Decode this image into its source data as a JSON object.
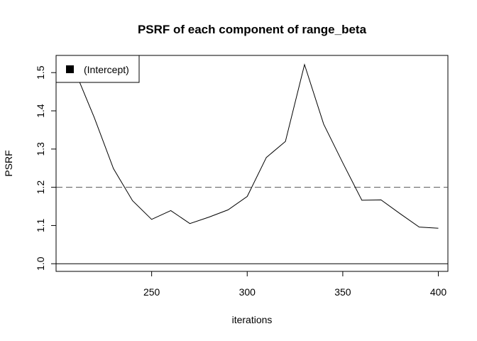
{
  "chart_data": {
    "type": "line",
    "title": "PSRF of each component of range_beta",
    "xlabel": "iterations",
    "ylabel": "PSRF",
    "xlim": [
      200,
      405
    ],
    "ylim": [
      0.98,
      1.545
    ],
    "xticks": [
      250,
      300,
      350,
      400
    ],
    "yticks": [
      1.0,
      1.1,
      1.2,
      1.3,
      1.4,
      1.5
    ],
    "ytick_labels": [
      "1.0",
      "1.1",
      "1.2",
      "1.3",
      "1.4",
      "1.5"
    ],
    "grid": false,
    "legend": {
      "position": "top-left",
      "entries": [
        "(Intercept)"
      ]
    },
    "series": [
      {
        "name": "(Intercept)",
        "color": "#000000",
        "x": [
          210,
          220,
          230,
          240,
          250,
          260,
          270,
          280,
          290,
          300,
          310,
          320,
          330,
          340,
          350,
          360,
          370,
          380,
          390,
          400
        ],
        "values": [
          1.503,
          1.382,
          1.249,
          1.165,
          1.116,
          1.139,
          1.105,
          1.122,
          1.141,
          1.176,
          1.278,
          1.32,
          1.521,
          1.365,
          1.264,
          1.166,
          1.167,
          1.131,
          1.096,
          1.093
        ]
      }
    ],
    "reference_lines": [
      {
        "y": 1.0,
        "style": "solid",
        "color": "#000000"
      },
      {
        "y": 1.2,
        "style": "dashed",
        "color": "#555555"
      }
    ]
  }
}
